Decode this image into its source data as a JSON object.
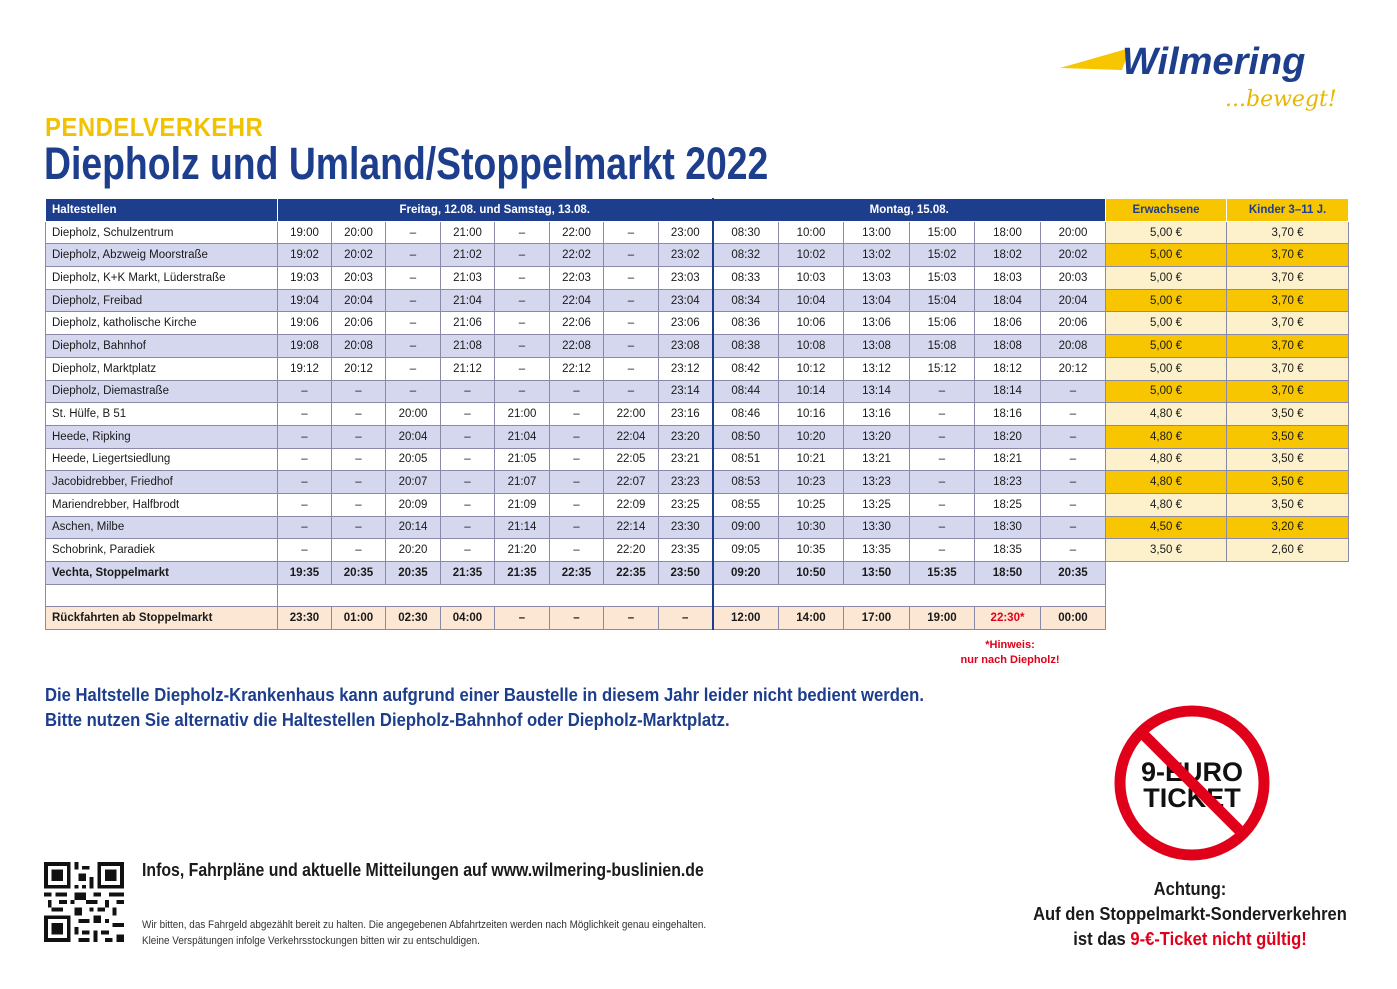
{
  "brand": {
    "name": "Wilmering",
    "slogan": "...bewegt!",
    "primary_color": "#1d3e8c",
    "accent_color": "#f7c600",
    "alert_color": "#e1001a"
  },
  "header": {
    "kicker": "PENDELVERKEHR",
    "title": "Diepholz und Umland/Stoppelmarkt 2022"
  },
  "table": {
    "col_stops": "Haltestellen",
    "col_friday": "Freitag, 12.08. und Samstag, 13.08.",
    "col_monday": "Montag, 15.08.",
    "col_adult": "Erwachsene",
    "col_child": "Kinder 3–11 J.",
    "rows": [
      {
        "stop": "Diepholz, Schulzentrum",
        "fri": [
          "19:00",
          "20:00",
          "–",
          "21:00",
          "–",
          "22:00",
          "–",
          "23:00"
        ],
        "mon": [
          "08:30",
          "10:00",
          "13:00",
          "15:00",
          "18:00",
          "20:00"
        ],
        "adult": "5,00 €",
        "child": "3,70 €"
      },
      {
        "stop": "Diepholz, Abzweig Moorstraße",
        "fri": [
          "19:02",
          "20:02",
          "–",
          "21:02",
          "–",
          "22:02",
          "–",
          "23:02"
        ],
        "mon": [
          "08:32",
          "10:02",
          "13:02",
          "15:02",
          "18:02",
          "20:02"
        ],
        "adult": "5,00 €",
        "child": "3,70 €"
      },
      {
        "stop": "Diepholz, K+K Markt, Lüderstraße",
        "fri": [
          "19:03",
          "20:03",
          "–",
          "21:03",
          "–",
          "22:03",
          "–",
          "23:03"
        ],
        "mon": [
          "08:33",
          "10:03",
          "13:03",
          "15:03",
          "18:03",
          "20:03"
        ],
        "adult": "5,00 €",
        "child": "3,70 €"
      },
      {
        "stop": "Diepholz, Freibad",
        "fri": [
          "19:04",
          "20:04",
          "–",
          "21:04",
          "–",
          "22:04",
          "–",
          "23:04"
        ],
        "mon": [
          "08:34",
          "10:04",
          "13:04",
          "15:04",
          "18:04",
          "20:04"
        ],
        "adult": "5,00 €",
        "child": "3,70 €"
      },
      {
        "stop": "Diepholz, katholische Kirche",
        "fri": [
          "19:06",
          "20:06",
          "–",
          "21:06",
          "–",
          "22:06",
          "–",
          "23:06"
        ],
        "mon": [
          "08:36",
          "10:06",
          "13:06",
          "15:06",
          "18:06",
          "20:06"
        ],
        "adult": "5,00 €",
        "child": "3,70 €"
      },
      {
        "stop": "Diepholz, Bahnhof",
        "fri": [
          "19:08",
          "20:08",
          "–",
          "21:08",
          "–",
          "22:08",
          "–",
          "23:08"
        ],
        "mon": [
          "08:38",
          "10:08",
          "13:08",
          "15:08",
          "18:08",
          "20:08"
        ],
        "adult": "5,00 €",
        "child": "3,70 €"
      },
      {
        "stop": "Diepholz, Marktplatz",
        "fri": [
          "19:12",
          "20:12",
          "–",
          "21:12",
          "–",
          "22:12",
          "–",
          "23:12"
        ],
        "mon": [
          "08:42",
          "10:12",
          "13:12",
          "15:12",
          "18:12",
          "20:12"
        ],
        "adult": "5,00 €",
        "child": "3,70 €"
      },
      {
        "stop": "Diepholz, Diemastraße",
        "fri": [
          "–",
          "–",
          "–",
          "–",
          "–",
          "–",
          "–",
          "23:14"
        ],
        "mon": [
          "08:44",
          "10:14",
          "13:14",
          "–",
          "18:14",
          "–"
        ],
        "adult": "5,00 €",
        "child": "3,70 €"
      },
      {
        "stop": "St. Hülfe, B 51",
        "fri": [
          "–",
          "–",
          "20:00",
          "–",
          "21:00",
          "–",
          "22:00",
          "23:16"
        ],
        "mon": [
          "08:46",
          "10:16",
          "13:16",
          "–",
          "18:16",
          "–"
        ],
        "adult": "4,80 €",
        "child": "3,50 €"
      },
      {
        "stop": "Heede, Ripking",
        "fri": [
          "–",
          "–",
          "20:04",
          "–",
          "21:04",
          "–",
          "22:04",
          "23:20"
        ],
        "mon": [
          "08:50",
          "10:20",
          "13:20",
          "–",
          "18:20",
          "–"
        ],
        "adult": "4,80 €",
        "child": "3,50 €"
      },
      {
        "stop": "Heede, Liegertsiedlung",
        "fri": [
          "–",
          "–",
          "20:05",
          "–",
          "21:05",
          "–",
          "22:05",
          "23:21"
        ],
        "mon": [
          "08:51",
          "10:21",
          "13:21",
          "–",
          "18:21",
          "–"
        ],
        "adult": "4,80 €",
        "child": "3,50 €"
      },
      {
        "stop": "Jacobidrebber, Friedhof",
        "fri": [
          "–",
          "–",
          "20:07",
          "–",
          "21:07",
          "–",
          "22:07",
          "23:23"
        ],
        "mon": [
          "08:53",
          "10:23",
          "13:23",
          "–",
          "18:23",
          "–"
        ],
        "adult": "4,80 €",
        "child": "3,50 €"
      },
      {
        "stop": "Mariendrebber, Halfbrodt",
        "fri": [
          "–",
          "–",
          "20:09",
          "–",
          "21:09",
          "–",
          "22:09",
          "23:25"
        ],
        "mon": [
          "08:55",
          "10:25",
          "13:25",
          "–",
          "18:25",
          "–"
        ],
        "adult": "4,80 €",
        "child": "3,50 €"
      },
      {
        "stop": "Aschen, Milbe",
        "fri": [
          "–",
          "–",
          "20:14",
          "–",
          "21:14",
          "–",
          "22:14",
          "23:30"
        ],
        "mon": [
          "09:00",
          "10:30",
          "13:30",
          "–",
          "18:30",
          "–"
        ],
        "adult": "4,50 €",
        "child": "3,20 €"
      },
      {
        "stop": "Schobrink, Paradiek",
        "fri": [
          "–",
          "–",
          "20:20",
          "–",
          "21:20",
          "–",
          "22:20",
          "23:35"
        ],
        "mon": [
          "09:05",
          "10:35",
          "13:35",
          "–",
          "18:35",
          "–"
        ],
        "adult": "3,50 €",
        "child": "2,60 €"
      }
    ],
    "destination": {
      "stop": "Vechta, Stoppelmarkt",
      "fri": [
        "19:35",
        "20:35",
        "20:35",
        "21:35",
        "21:35",
        "22:35",
        "22:35",
        "23:50"
      ],
      "mon": [
        "09:20",
        "10:50",
        "13:50",
        "15:35",
        "18:50",
        "20:35"
      ]
    },
    "return": {
      "label": "Rückfahrten ab Stoppelmarkt",
      "fri": [
        "23:30",
        "01:00",
        "02:30",
        "04:00",
        "–",
        "–",
        "–",
        "–"
      ],
      "mon": [
        "12:00",
        "14:00",
        "17:00",
        "19:00",
        "22:30*",
        "00:00"
      ]
    }
  },
  "hint": {
    "line1": "*Hinweis:",
    "line2": "nur nach Diepholz!"
  },
  "notice": {
    "line1": "Die Haltstelle Diepholz-Krankenhaus kann aufgrund einer Baustelle in diesem Jahr leider nicht bedient werden.",
    "line2": "Bitte nutzen Sie alternativ die Haltestellen Diepholz-Bahnhof oder Diepholz-Marktplatz."
  },
  "footer": {
    "infos": "Infos, Fahrpläne und aktuelle Mitteilungen auf www.wilmering-buslinien.de",
    "small1": "Wir bitten, das Fahrgeld abgezählt bereit zu halten. Die angegebenen Abfahrtzeiten werden nach Möglichkeit genau eingehalten.",
    "small2": "Kleine Verspätungen infolge Verkehrsstockungen bitten wir zu entschuldigen."
  },
  "ticket": {
    "sign_line1": "9-EURO",
    "sign_line2": "TICKET",
    "warn_line1": "Achtung:",
    "warn_line2": "Auf den Stoppelmarkt-Sonderverkehren",
    "warn_prefix": "ist das",
    "warn_red": "9-€-Ticket nicht gültig!"
  }
}
